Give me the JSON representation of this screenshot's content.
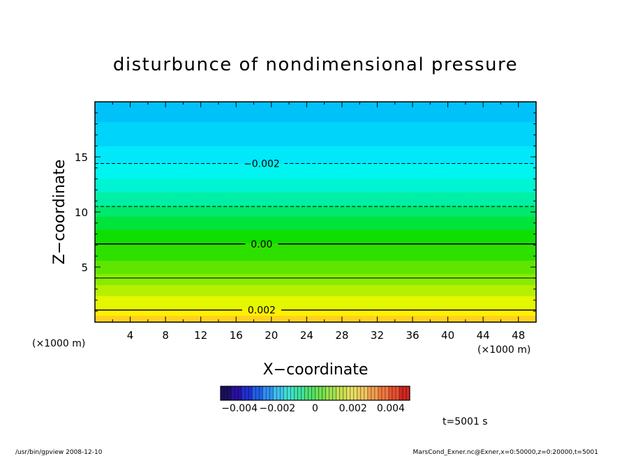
{
  "chart_data": {
    "type": "heatmap",
    "title": "disturbunce of nondimensional pressure",
    "xlabel": "X−coordinate",
    "ylabel": "Z−coordinate",
    "x_unit_left": "(×1000 m)",
    "x_unit_right": "(×1000 m)",
    "xlim": [
      0,
      50
    ],
    "ylim": [
      0,
      20
    ],
    "x_ticks": [
      4,
      8,
      12,
      16,
      20,
      24,
      28,
      32,
      36,
      40,
      44,
      48
    ],
    "y_ticks": [
      5,
      10,
      15
    ],
    "fill_bands": [
      {
        "z0": 0.0,
        "z1": 0.6,
        "color": "#ffd21e"
      },
      {
        "z0": 0.6,
        "z1": 1.2,
        "color": "#fff000"
      },
      {
        "z0": 1.2,
        "z1": 2.4,
        "color": "#e3f700"
      },
      {
        "z0": 2.4,
        "z1": 3.4,
        "color": "#b6f000"
      },
      {
        "z0": 3.4,
        "z1": 4.4,
        "color": "#86ec00"
      },
      {
        "z0": 4.4,
        "z1": 5.6,
        "color": "#5fe600"
      },
      {
        "z0": 5.6,
        "z1": 7.2,
        "color": "#2ee000"
      },
      {
        "z0": 7.2,
        "z1": 8.4,
        "color": "#0ede00"
      },
      {
        "z0": 8.4,
        "z1": 9.6,
        "color": "#00e33a"
      },
      {
        "z0": 9.6,
        "z1": 10.6,
        "color": "#00e86e"
      },
      {
        "z0": 10.6,
        "z1": 11.8,
        "color": "#00efa6"
      },
      {
        "z0": 11.8,
        "z1": 13.0,
        "color": "#00f4d2"
      },
      {
        "z0": 13.0,
        "z1": 14.4,
        "color": "#00f5f0"
      },
      {
        "z0": 14.4,
        "z1": 16.0,
        "color": "#00e8fa"
      },
      {
        "z0": 16.0,
        "z1": 18.2,
        "color": "#00d4fb"
      },
      {
        "z0": 18.2,
        "z1": 20.0,
        "color": "#00c2f8"
      }
    ],
    "contours": [
      {
        "z": 14.4,
        "style": "dashed",
        "label": "−0.002"
      },
      {
        "z": 10.5,
        "style": "dashed",
        "label": ""
      },
      {
        "z": 7.1,
        "style": "solid-thick",
        "label": "0.00"
      },
      {
        "z": 4.0,
        "style": "solid",
        "label": ""
      },
      {
        "z": 1.1,
        "style": "solid-thick",
        "label": "0.002"
      }
    ],
    "colorbar": {
      "range": [
        -0.005,
        0.005
      ],
      "tick_values": [
        -0.004,
        -0.002,
        0,
        0.002,
        0.004
      ],
      "tick_labels": [
        "−0.004",
        "−0.002",
        "0",
        "0.002",
        "0.004"
      ],
      "colors": [
        "#1a1060",
        "#2a10a0",
        "#2030d0",
        "#2060e8",
        "#3090f0",
        "#40c0f0",
        "#40e0d0",
        "#40e0a0",
        "#50e070",
        "#70e050",
        "#a0e050",
        "#c8e050",
        "#e8e060",
        "#f0c860",
        "#f0a050",
        "#f07840",
        "#e85030",
        "#d02820"
      ]
    },
    "time_label": "t=5001 s"
  },
  "footer": {
    "left": "/usr/bin/gpview   2008-12-10",
    "right": "MarsCond_Exner.nc@Exner,x=0:50000,z=0:20000,t=5001"
  }
}
